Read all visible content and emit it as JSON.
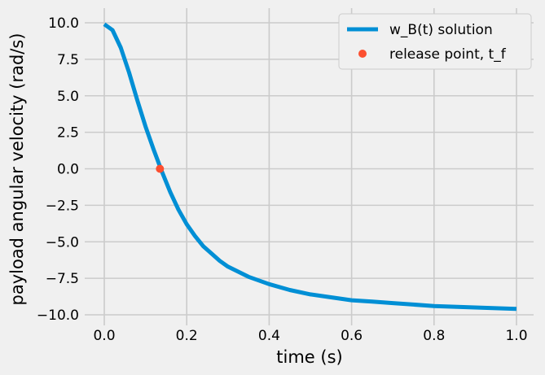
{
  "chart_data": {
    "type": "line",
    "xlabel": "time (s)",
    "ylabel": "payload angular velocity (rad/s)",
    "xlim": [
      0.0,
      1.0
    ],
    "ylim": [
      -10.0,
      10.0
    ],
    "xticks": [
      "0.0",
      "0.2",
      "0.4",
      "0.6",
      "0.8",
      "1.0"
    ],
    "yticks": [
      "10.0",
      "7.5",
      "5.0",
      "2.5",
      "0.0",
      "−2.5",
      "−5.0",
      "−7.5",
      "−10.0"
    ],
    "grid": true,
    "legend_position": "top-right",
    "series": [
      {
        "name": "w_B(t) solution",
        "color": "#008fd5",
        "x": [
          0.0,
          0.02,
          0.04,
          0.06,
          0.08,
          0.1,
          0.12,
          0.14,
          0.16,
          0.18,
          0.2,
          0.22,
          0.24,
          0.26,
          0.28,
          0.3,
          0.35,
          0.4,
          0.45,
          0.5,
          0.55,
          0.6,
          0.65,
          0.7,
          0.75,
          0.8,
          0.85,
          0.9,
          0.95,
          1.0
        ],
        "y": [
          9.9,
          9.5,
          8.3,
          6.6,
          4.7,
          2.9,
          1.3,
          -0.2,
          -1.6,
          -2.8,
          -3.8,
          -4.6,
          -5.3,
          -5.8,
          -6.3,
          -6.7,
          -7.4,
          -7.9,
          -8.3,
          -8.6,
          -8.8,
          -9.0,
          -9.1,
          -9.2,
          -9.3,
          -9.4,
          -9.45,
          -9.5,
          -9.55,
          -9.6
        ]
      }
    ],
    "points": [
      {
        "name": "release point, t_f",
        "color": "#fc4f30",
        "x": 0.135,
        "y": 0.0
      }
    ]
  }
}
